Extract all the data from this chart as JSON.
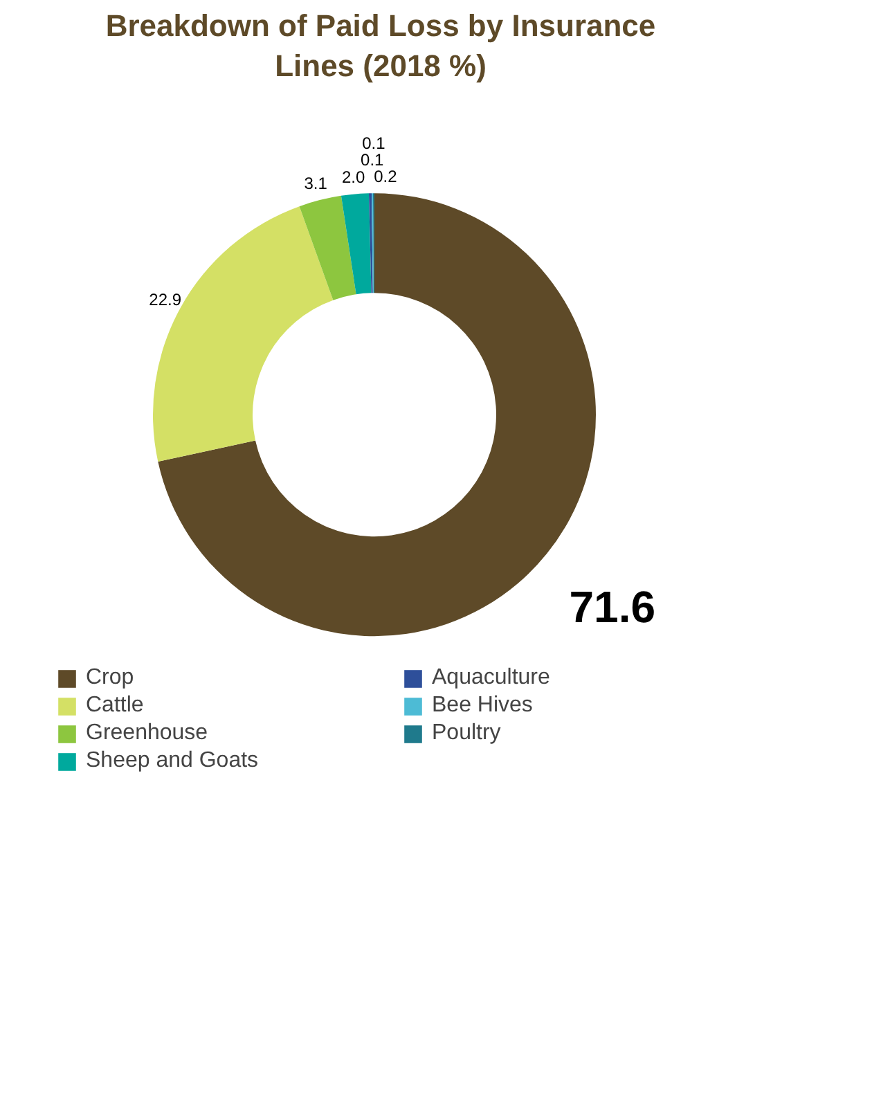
{
  "chart_data": {
    "type": "donut",
    "title": "Breakdown of Paid Loss by Insurance Lines (2018 %)",
    "categories": [
      "Crop",
      "Cattle",
      "Greenhouse",
      "Sheep and Goats",
      "Aquaculture",
      "Bee Hives",
      "Poultry"
    ],
    "values": [
      71.6,
      22.9,
      3.1,
      2.0,
      0.2,
      0.1,
      0.1
    ],
    "colors": [
      "#5e4a28",
      "#d4e065",
      "#8dc63f",
      "#00a99d",
      "#2e4f9a",
      "#4dbbd5",
      "#1f7a8c"
    ],
    "value_labels": [
      "71.6",
      "22.9",
      "3.1",
      "2.0",
      "0.2",
      "0.1",
      "0.1"
    ],
    "legend": "bottom"
  }
}
